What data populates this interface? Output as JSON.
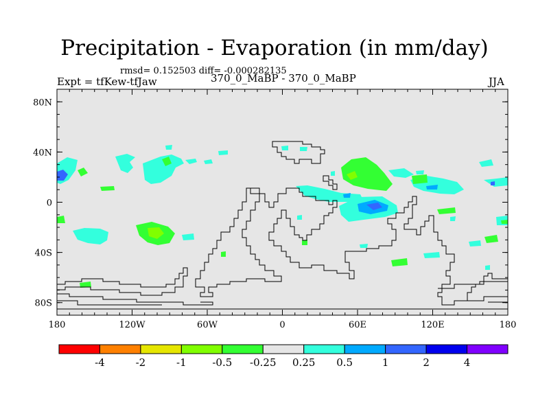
{
  "header": {
    "title": "Precipitation - Evaporation (in mm/day)",
    "stats": "rmsd= 0.152503  diff= -0.000282135",
    "left_label": "Expt = tfKew-tfJaw",
    "center_label": "370_0_MaBP - 370_0_MaBP",
    "right_label": "JJA"
  },
  "map": {
    "background_color": "#e6e6e6",
    "x_ticks": [
      {
        "value": -180,
        "label": "180"
      },
      {
        "value": -120,
        "label": "120W"
      },
      {
        "value": -60,
        "label": "60W"
      },
      {
        "value": 0,
        "label": "0"
      },
      {
        "value": 60,
        "label": "60E"
      },
      {
        "value": 120,
        "label": "120E"
      },
      {
        "value": 180,
        "label": "180"
      }
    ],
    "y_ticks": [
      {
        "value": 80,
        "label": "80N"
      },
      {
        "value": 40,
        "label": "40N"
      },
      {
        "value": 0,
        "label": "0"
      },
      {
        "value": -40,
        "label": "40S"
      },
      {
        "value": -80,
        "label": "80S"
      }
    ],
    "xlim": [
      -180,
      180
    ],
    "ylim": [
      -90,
      90
    ]
  },
  "colorbar": {
    "colors": [
      "#ff0000",
      "#ff8000",
      "#e6e600",
      "#80ff00",
      "#33ff33",
      "#e6e6e6",
      "#33ffdd",
      "#00aaff",
      "#3366ff",
      "#0000ee",
      "#8000ff"
    ],
    "labels": [
      "-4",
      "-2",
      "-1",
      "-0.5",
      "-0.25",
      "0.25",
      "0.5",
      "1",
      "2",
      "4"
    ]
  },
  "colors": {
    "green": "#33ff33",
    "light_green": "#80ff00",
    "cyan": "#33ffdd",
    "light_blue": "#00aaff",
    "blue": "#3366ff"
  }
}
